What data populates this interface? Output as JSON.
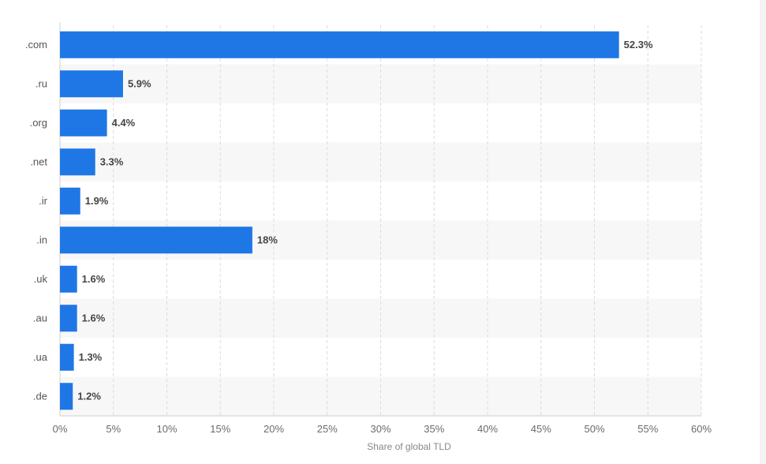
{
  "chart_data": {
    "type": "bar",
    "orientation": "horizontal",
    "categories": [
      ".com",
      ".ru",
      ".org",
      ".net",
      ".ir",
      ".in",
      ".uk",
      ".au",
      ".ua",
      ".de"
    ],
    "values": [
      52.3,
      5.9,
      4.4,
      3.3,
      1.9,
      18,
      1.6,
      1.6,
      1.3,
      1.2
    ],
    "data_labels": [
      "52.3%",
      "5.9%",
      "4.4%",
      "3.3%",
      "1.9%",
      "18%",
      "1.6%",
      "1.6%",
      "1.3%",
      "1.2%"
    ],
    "x_ticks": [
      "0%",
      "5%",
      "10%",
      "15%",
      "20%",
      "25%",
      "30%",
      "35%",
      "40%",
      "45%",
      "50%",
      "55%",
      "60%"
    ],
    "xlim": [
      0,
      60
    ],
    "xlabel": "Share of global TLD",
    "ylabel": "",
    "title": "",
    "grid": "vertical dashed",
    "legend": "none",
    "bar_color": "#1f77e6",
    "stripe_color": "#f7f7f7"
  }
}
